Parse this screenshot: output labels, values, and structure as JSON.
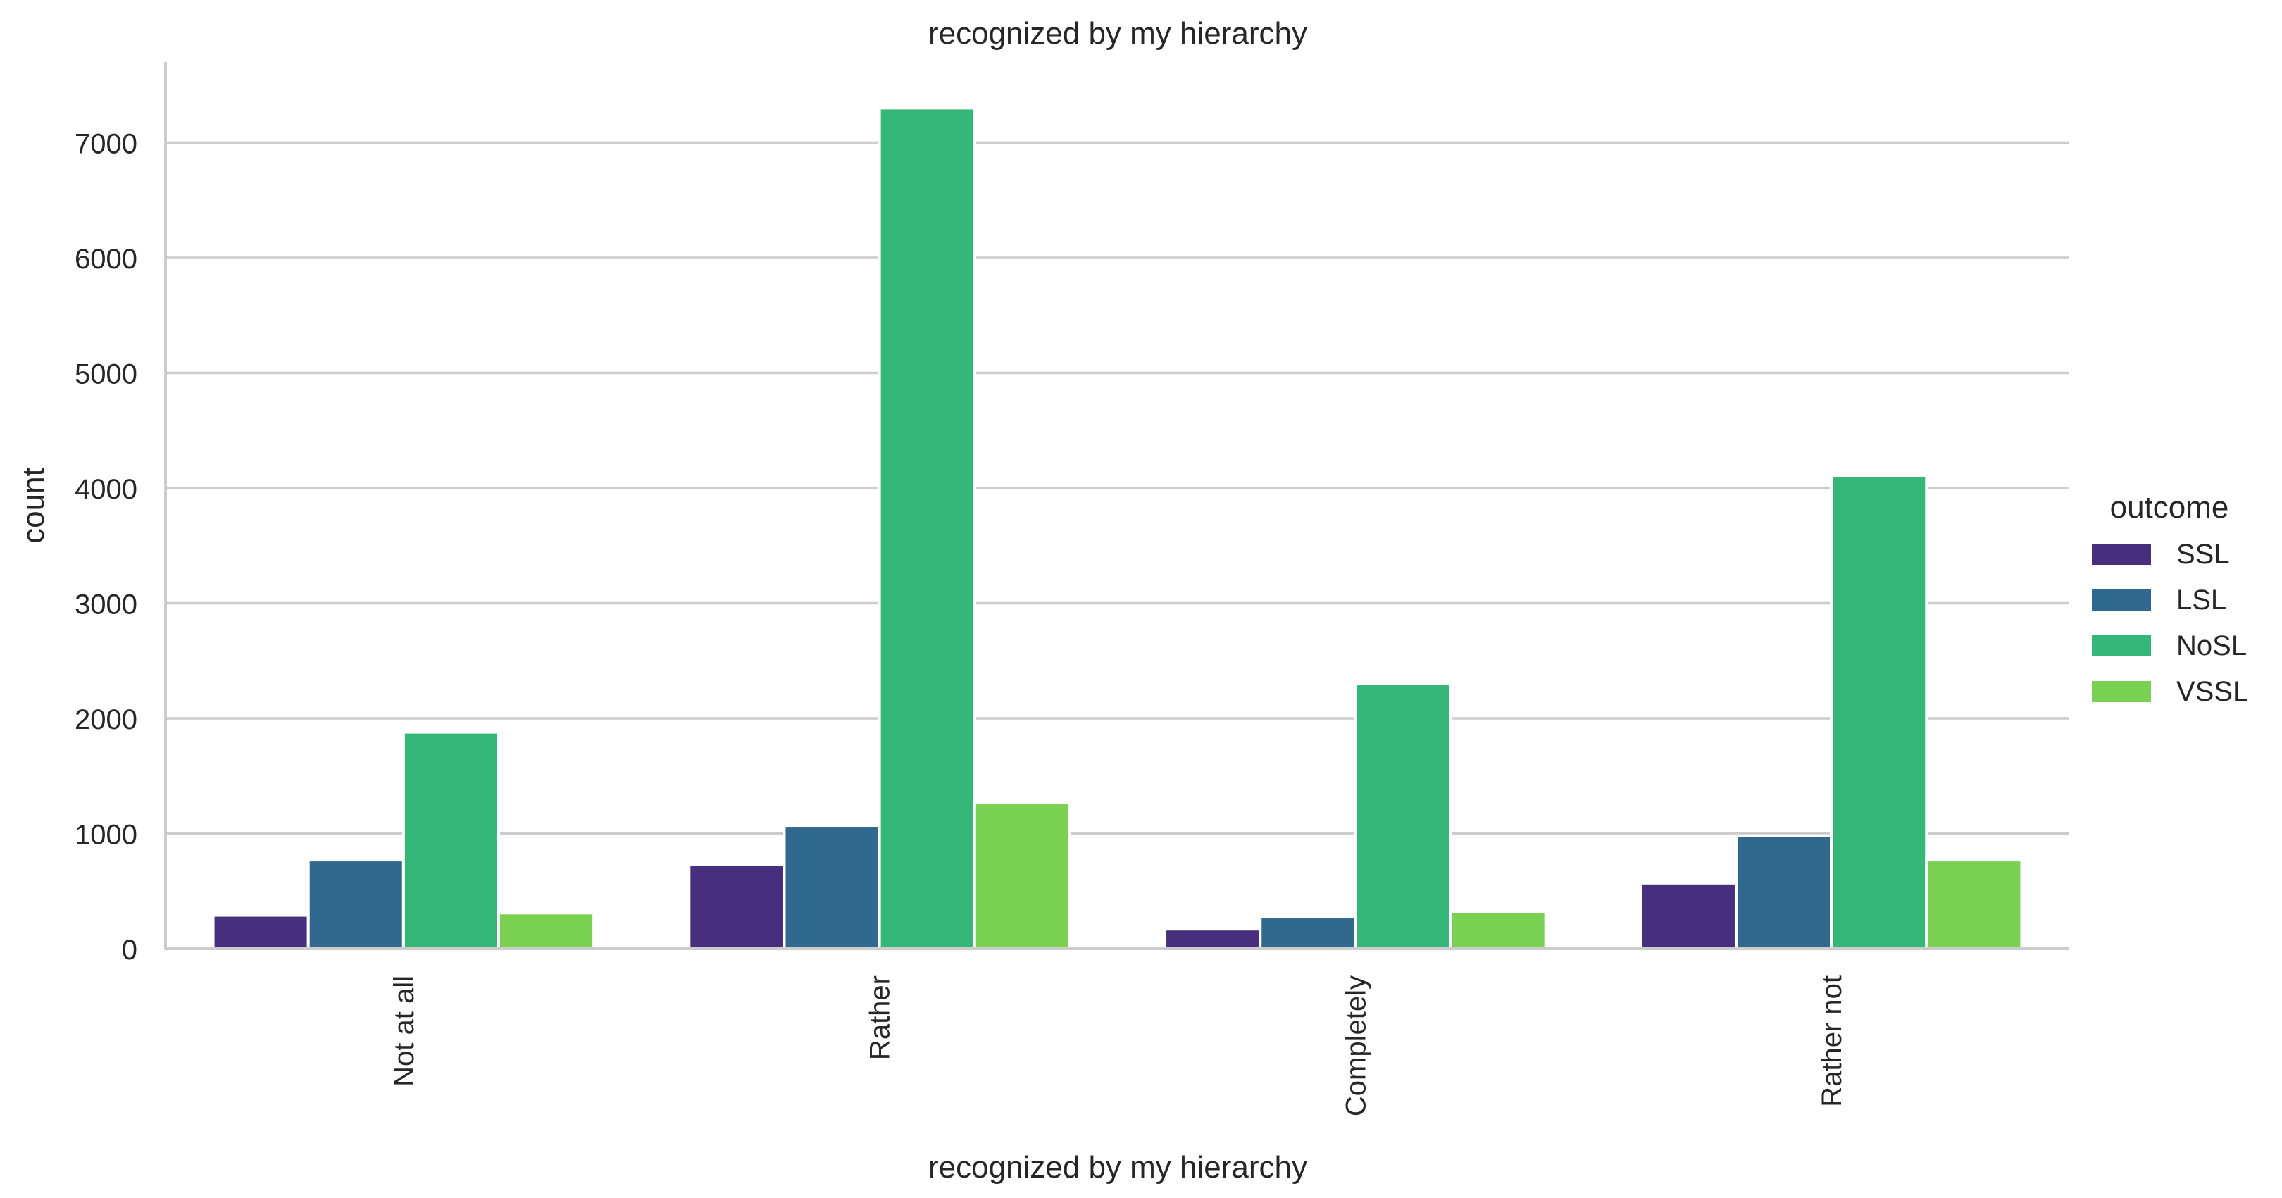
{
  "chart_data": {
    "type": "bar",
    "title": "recognized by my hierarchy",
    "xlabel": "recognized by my hierarchy",
    "ylabel": "count",
    "categories": [
      "Not at all",
      "Rather",
      "Completely",
      "Rather not"
    ],
    "series": [
      {
        "name": "SSL",
        "color": "#472f7d",
        "values": [
          290,
          730,
          170,
          570
        ]
      },
      {
        "name": "LSL",
        "color": "#31688e",
        "values": [
          770,
          1070,
          280,
          980
        ]
      },
      {
        "name": "NoSL",
        "color": "#35b779",
        "values": [
          1880,
          7300,
          2300,
          4110
        ]
      },
      {
        "name": "VSSL",
        "color": "#7ad151",
        "values": [
          310,
          1270,
          320,
          770
        ]
      }
    ],
    "yticks": [
      "0",
      "1000",
      "2000",
      "3000",
      "4000",
      "5000",
      "6000",
      "7000"
    ],
    "ylim": [
      0,
      7700
    ],
    "grid": "horizontal",
    "legend": {
      "title": "outcome",
      "placement": "right"
    }
  }
}
